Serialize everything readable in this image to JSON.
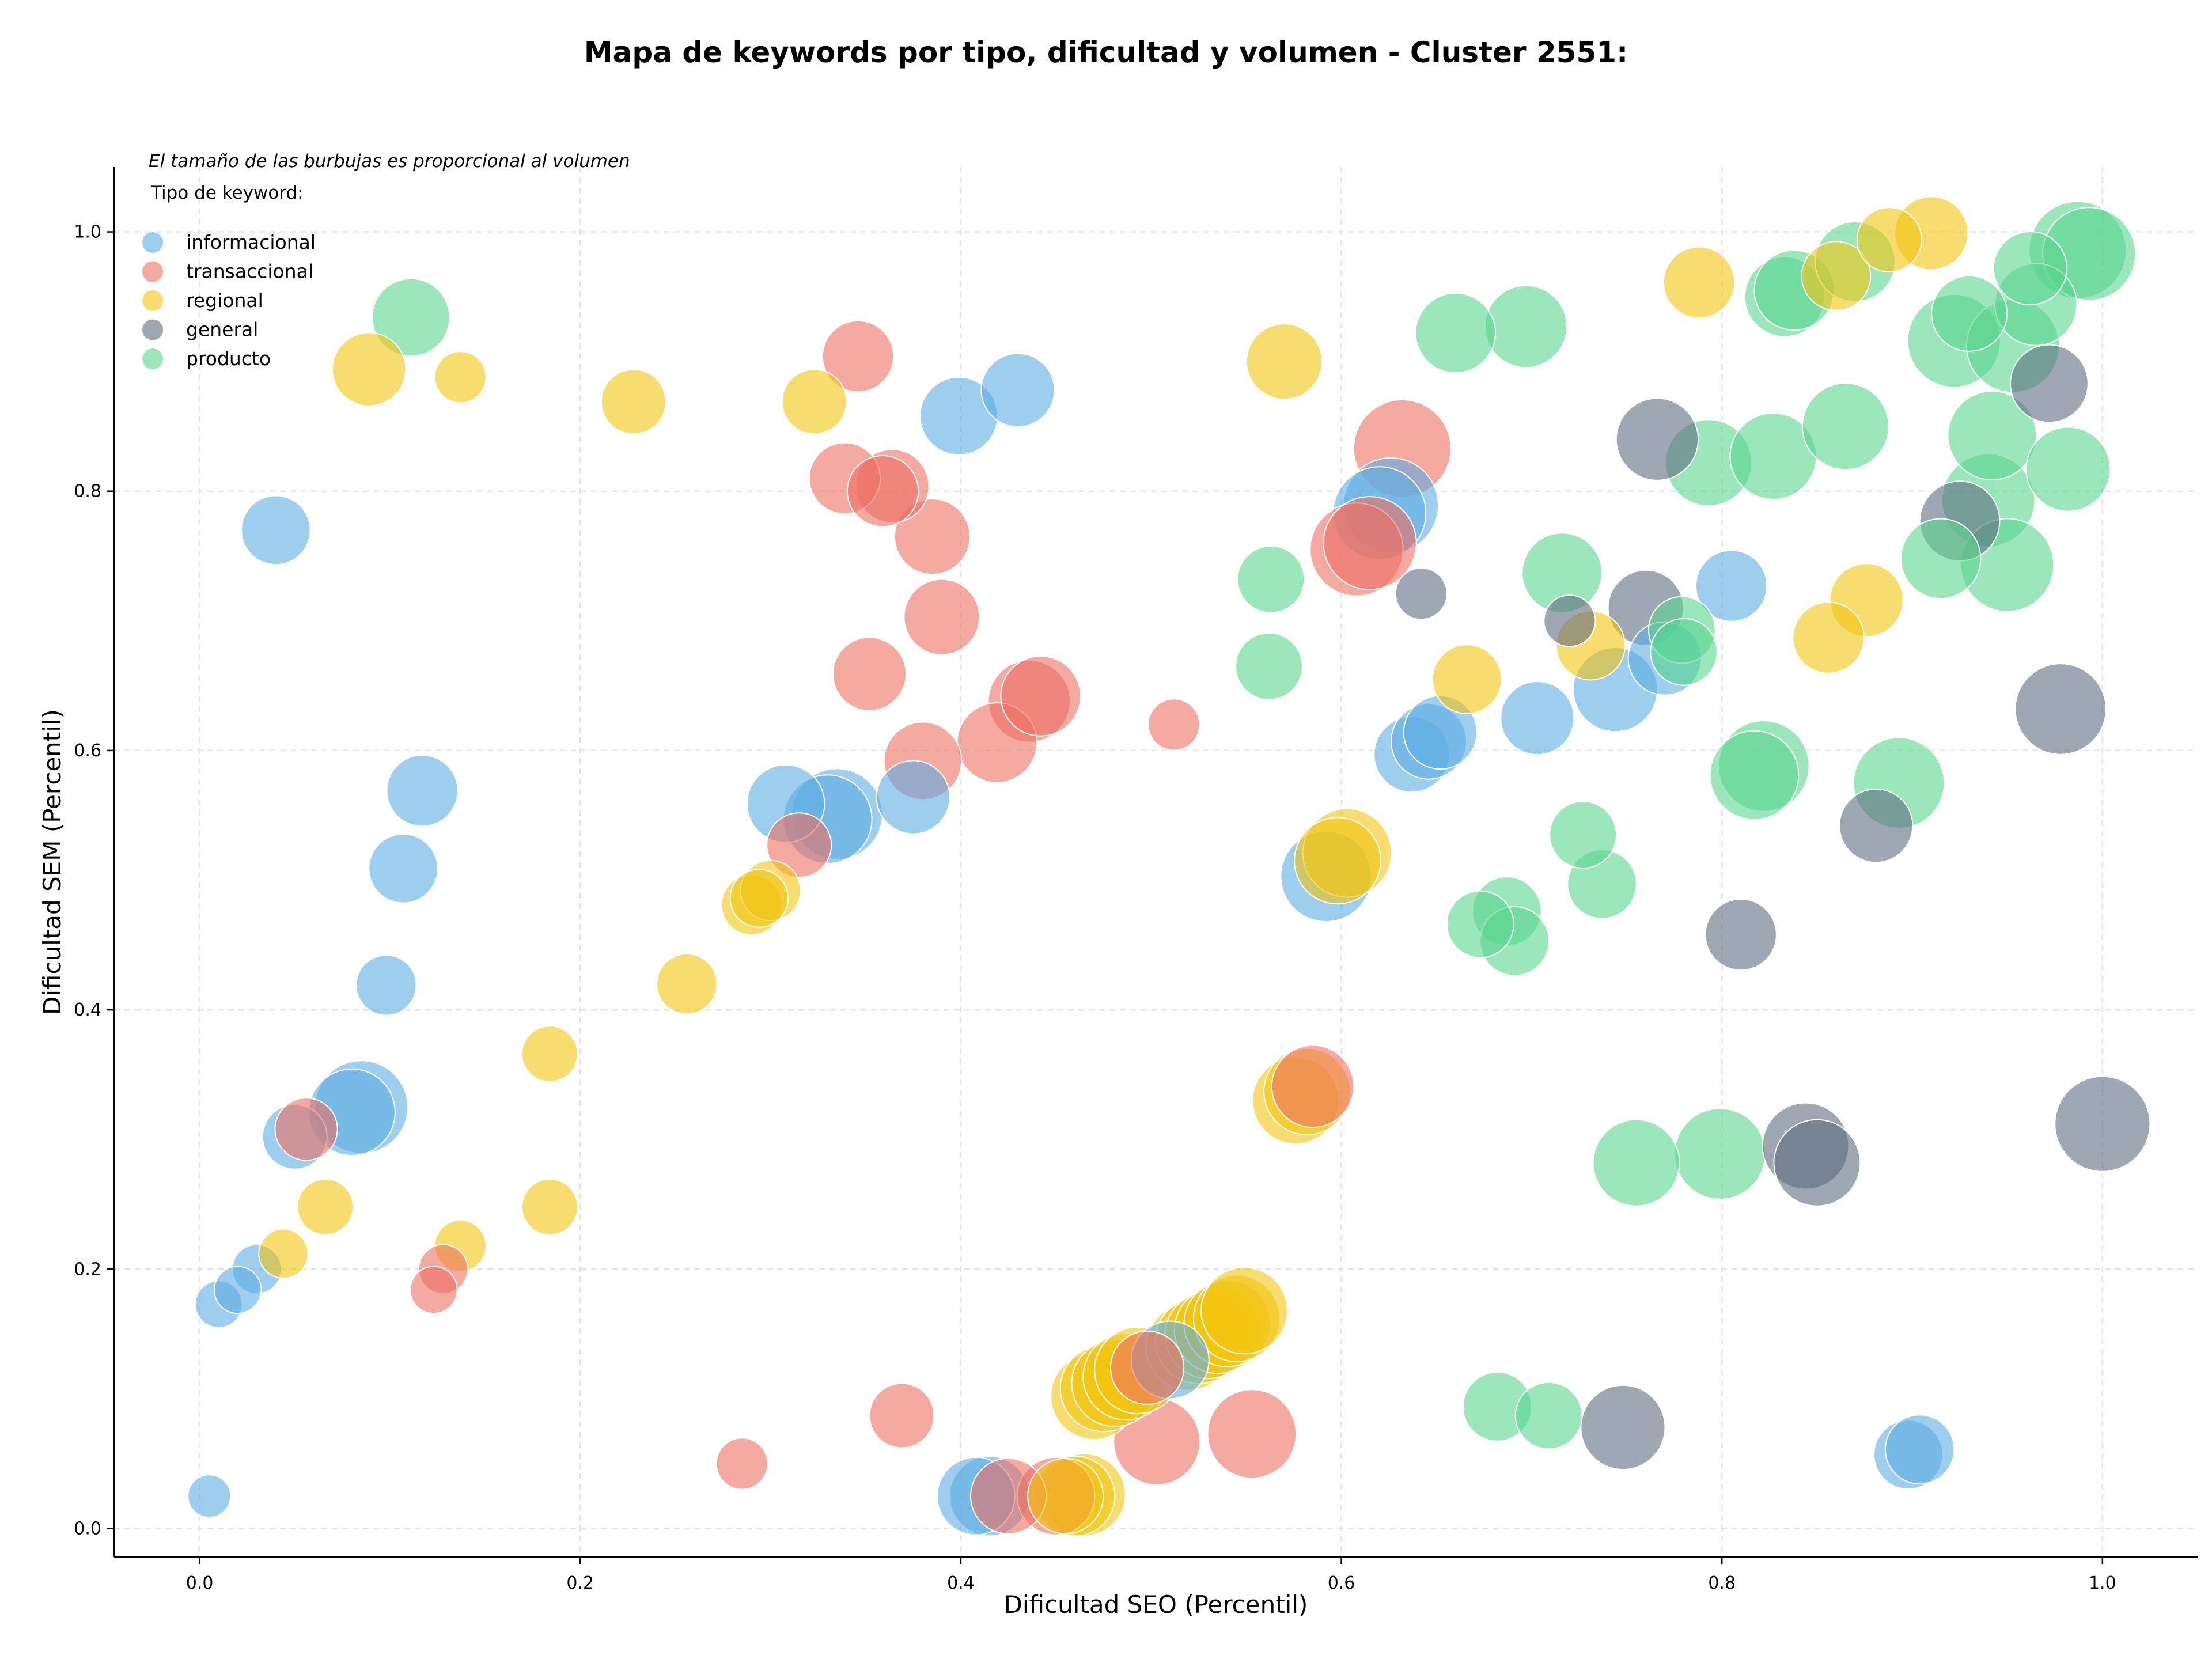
{
  "chart_data": {
    "type": "scatter",
    "title": "Mapa de keywords por tipo, dificultad y volumen - Cluster 2551:",
    "xlabel": "Dificultad SEO (Percentil)",
    "ylabel": "Dificultad SEM (Percentil)",
    "xlim": [
      -0.045,
      1.05
    ],
    "ylim": [
      -0.022,
      1.05
    ],
    "xticks": [
      0.0,
      0.2,
      0.4,
      0.6,
      0.8,
      1.0
    ],
    "yticks": [
      0.0,
      0.2,
      0.4,
      0.6,
      0.8,
      1.0
    ],
    "xtick_labels": [
      "0.0",
      "0.2",
      "0.4",
      "0.6",
      "0.8",
      "1.0"
    ],
    "ytick_labels": [
      "0.0",
      "0.2",
      "0.4",
      "0.6",
      "0.8",
      "1.0"
    ],
    "grid": true,
    "legend_placement": "top-left",
    "legend_note": "El tamaño de las burbujas es proporcional al volumen",
    "legend_title": "Tipo de keyword:",
    "size_encoding": "volumen",
    "series": [
      {
        "name": "informacional",
        "color": "#5dade2",
        "points": [
          [
            0.005,
            0.025,
            1.0
          ],
          [
            0.01,
            0.173,
            1.2
          ],
          [
            0.02,
            0.184,
            1.2
          ],
          [
            0.03,
            0.2,
            1.3
          ],
          [
            0.04,
            0.77,
            2.2
          ],
          [
            0.05,
            0.302,
            2.0
          ],
          [
            0.08,
            0.321,
            3.0
          ],
          [
            0.085,
            0.325,
            3.3
          ],
          [
            0.098,
            0.419,
            1.8
          ],
          [
            0.107,
            0.509,
            2.2
          ],
          [
            0.117,
            0.569,
            2.3
          ],
          [
            0.308,
            0.559,
            2.6
          ],
          [
            0.33,
            0.547,
            3.1
          ],
          [
            0.335,
            0.551,
            3.2
          ],
          [
            0.375,
            0.564,
            2.4
          ],
          [
            0.399,
            0.858,
            2.6
          ],
          [
            0.43,
            0.878,
            2.4
          ],
          [
            0.408,
            0.025,
            2.6
          ],
          [
            0.415,
            0.025,
            2.7
          ],
          [
            0.51,
            0.13,
            2.6
          ],
          [
            0.592,
            0.503,
            3.2
          ],
          [
            0.62,
            0.783,
            3.3
          ],
          [
            0.626,
            0.789,
            3.4
          ],
          [
            0.637,
            0.597,
            2.5
          ],
          [
            0.646,
            0.607,
            2.5
          ],
          [
            0.652,
            0.614,
            2.4
          ],
          [
            0.703,
            0.625,
            2.4
          ],
          [
            0.744,
            0.647,
            2.9
          ],
          [
            0.77,
            0.671,
            2.4
          ],
          [
            0.805,
            0.727,
            2.3
          ],
          [
            0.898,
            0.057,
            2.2
          ],
          [
            0.904,
            0.061,
            2.2
          ]
        ]
      },
      {
        "name": "transaccional",
        "color": "#ec7063",
        "points": [
          [
            0.056,
            0.308,
            1.9
          ],
          [
            0.123,
            0.184,
            1.2
          ],
          [
            0.128,
            0.2,
            1.3
          ],
          [
            0.285,
            0.05,
            1.4
          ],
          [
            0.315,
            0.527,
            2.0
          ],
          [
            0.339,
            0.81,
            2.3
          ],
          [
            0.346,
            0.904,
            2.3
          ],
          [
            0.352,
            0.659,
            2.4
          ],
          [
            0.359,
            0.8,
            2.3
          ],
          [
            0.364,
            0.804,
            2.4
          ],
          [
            0.369,
            0.087,
            2.0
          ],
          [
            0.385,
            0.765,
            2.5
          ],
          [
            0.38,
            0.592,
            2.6
          ],
          [
            0.39,
            0.703,
            2.5
          ],
          [
            0.419,
            0.606,
            2.7
          ],
          [
            0.436,
            0.638,
            2.8
          ],
          [
            0.442,
            0.642,
            2.7
          ],
          [
            0.425,
            0.025,
            2.5
          ],
          [
            0.45,
            0.025,
            2.6
          ],
          [
            0.498,
            0.124,
            2.4
          ],
          [
            0.503,
            0.067,
            3.0
          ],
          [
            0.512,
            0.62,
            1.4
          ],
          [
            0.553,
            0.073,
            3.1
          ],
          [
            0.585,
            0.341,
            2.8
          ],
          [
            0.608,
            0.755,
            3.3
          ],
          [
            0.615,
            0.76,
            3.3
          ],
          [
            0.632,
            0.833,
            3.5
          ]
        ]
      },
      {
        "name": "regional",
        "color": "#f1c40f",
        "points": [
          [
            0.044,
            0.212,
            1.3
          ],
          [
            0.066,
            0.248,
            1.6
          ],
          [
            0.089,
            0.894,
            2.4
          ],
          [
            0.137,
            0.888,
            1.4
          ],
          [
            0.137,
            0.218,
            1.4
          ],
          [
            0.184,
            0.366,
            1.6
          ],
          [
            0.184,
            0.248,
            1.6
          ],
          [
            0.228,
            0.869,
            2.0
          ],
          [
            0.256,
            0.42,
            1.8
          ],
          [
            0.29,
            0.481,
            1.8
          ],
          [
            0.3,
            0.492,
            1.8
          ],
          [
            0.294,
            0.486,
            1.7
          ],
          [
            0.323,
            0.869,
            2.0
          ],
          [
            0.455,
            0.025,
            2.5
          ],
          [
            0.46,
            0.025,
            2.7
          ],
          [
            0.465,
            0.026,
            2.8
          ],
          [
            0.47,
            0.102,
            3.0
          ],
          [
            0.475,
            0.108,
            3.0
          ],
          [
            0.481,
            0.112,
            3.0
          ],
          [
            0.487,
            0.117,
            3.0
          ],
          [
            0.493,
            0.122,
            3.0
          ],
          [
            0.52,
            0.14,
            3.0
          ],
          [
            0.525,
            0.145,
            3.0
          ],
          [
            0.53,
            0.149,
            3.0
          ],
          [
            0.535,
            0.153,
            3.0
          ],
          [
            0.54,
            0.158,
            3.0
          ],
          [
            0.545,
            0.162,
            3.0
          ],
          [
            0.549,
            0.168,
            3.0
          ],
          [
            0.57,
            0.9,
            2.5
          ],
          [
            0.576,
            0.33,
            3.0
          ],
          [
            0.582,
            0.337,
            3.0
          ],
          [
            0.598,
            0.515,
            3.0
          ],
          [
            0.603,
            0.521,
            3.1
          ],
          [
            0.666,
            0.655,
            2.2
          ],
          [
            0.731,
            0.681,
            2.2
          ],
          [
            0.788,
            0.961,
            2.3
          ],
          [
            0.856,
            0.687,
            2.3
          ],
          [
            0.86,
            0.966,
            2.2
          ],
          [
            0.876,
            0.716,
            2.4
          ],
          [
            0.888,
            0.994,
            2.0
          ],
          [
            0.91,
            0.999,
            2.4
          ]
        ]
      },
      {
        "name": "general",
        "color": "#5d6d7e",
        "points": [
          [
            0.642,
            0.721,
            1.4
          ],
          [
            0.72,
            0.7,
            1.4
          ],
          [
            0.748,
            0.078,
            2.9
          ],
          [
            0.76,
            0.71,
            2.5
          ],
          [
            0.766,
            0.84,
            2.8
          ],
          [
            0.81,
            0.458,
            2.3
          ],
          [
            0.844,
            0.295,
            3.0
          ],
          [
            0.85,
            0.282,
            3.0
          ],
          [
            0.881,
            0.542,
            2.4
          ],
          [
            0.925,
            0.777,
            2.7
          ],
          [
            0.972,
            0.883,
            2.6
          ],
          [
            0.978,
            0.632,
            3.2
          ],
          [
            1.0,
            0.312,
            3.4
          ]
        ]
      },
      {
        "name": "producto",
        "color": "#58d68d",
        "points": [
          [
            0.111,
            0.934,
            2.6
          ],
          [
            0.563,
            0.732,
            2.1
          ],
          [
            0.562,
            0.665,
            2.1
          ],
          [
            0.66,
            0.922,
            2.7
          ],
          [
            0.673,
            0.466,
            2.1
          ],
          [
            0.687,
            0.476,
            2.2
          ],
          [
            0.691,
            0.453,
            2.2
          ],
          [
            0.682,
            0.094,
            2.2
          ],
          [
            0.697,
            0.927,
            2.8
          ],
          [
            0.709,
            0.087,
            2.1
          ],
          [
            0.716,
            0.737,
            2.7
          ],
          [
            0.727,
            0.535,
            2.1
          ],
          [
            0.737,
            0.497,
            2.2
          ],
          [
            0.755,
            0.282,
            3.0
          ],
          [
            0.779,
            0.693,
            2.1
          ],
          [
            0.78,
            0.676,
            2.1
          ],
          [
            0.793,
            0.822,
            3.0
          ],
          [
            0.799,
            0.289,
            3.2
          ],
          [
            0.817,
            0.581,
            3.1
          ],
          [
            0.822,
            0.588,
            3.2
          ],
          [
            0.827,
            0.827,
            3.0
          ],
          [
            0.833,
            0.95,
            2.7
          ],
          [
            0.838,
            0.955,
            2.7
          ],
          [
            0.865,
            0.85,
            3.0
          ],
          [
            0.87,
            0.977,
            2.7
          ],
          [
            0.893,
            0.575,
            3.2
          ],
          [
            0.915,
            0.748,
            2.7
          ],
          [
            0.922,
            0.916,
            3.3
          ],
          [
            0.93,
            0.937,
            2.5
          ],
          [
            0.94,
            0.793,
            3.3
          ],
          [
            0.942,
            0.843,
            3.1
          ],
          [
            0.95,
            0.743,
            3.3
          ],
          [
            0.953,
            0.912,
            3.3
          ],
          [
            0.962,
            0.972,
            2.4
          ],
          [
            0.965,
            0.944,
            2.8
          ],
          [
            0.982,
            0.817,
            2.9
          ],
          [
            0.987,
            0.986,
            3.5
          ],
          [
            0.993,
            0.983,
            3.3
          ]
        ]
      }
    ]
  }
}
